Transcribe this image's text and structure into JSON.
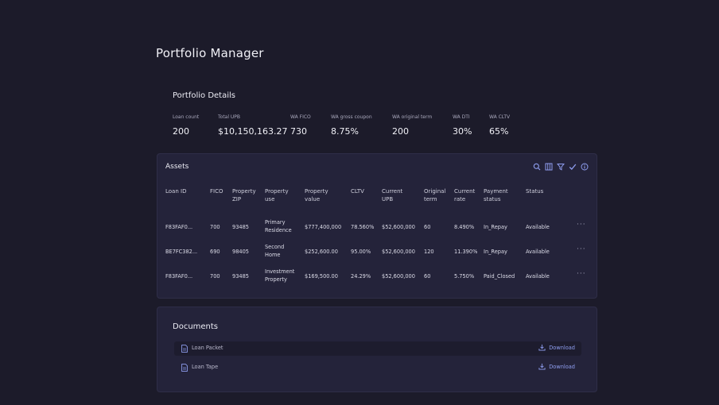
{
  "page": {
    "title": "Portfolio Manager"
  },
  "details": {
    "title": "Portfolio Details",
    "metrics": [
      {
        "label": "Loan count",
        "value": "200"
      },
      {
        "label": "Total UPB",
        "value": "$10,150,163.27"
      },
      {
        "label": "WA FICO",
        "value": "730"
      },
      {
        "label": "WA gross coupon",
        "value": "8.75%"
      },
      {
        "label": "WA original term",
        "value": "200"
      },
      {
        "label": "WA DTI",
        "value": "30%"
      },
      {
        "label": "WA CLTV",
        "value": "65%"
      }
    ]
  },
  "assets": {
    "title": "Assets",
    "toolbar_icons": [
      "search-icon",
      "columns-icon",
      "filter-icon",
      "check-icon",
      "info-icon"
    ],
    "columns": {
      "loan_id": [
        "Loan ID"
      ],
      "fico": [
        "FICO"
      ],
      "zip": [
        "Property",
        "ZIP"
      ],
      "use": [
        "Property",
        "use"
      ],
      "value": [
        "Property",
        "value"
      ],
      "cltv": [
        "CLTV"
      ],
      "upb": [
        "Current",
        "UPB"
      ],
      "term": [
        "Original",
        "term"
      ],
      "rate": [
        "Current",
        "rate"
      ],
      "payment": [
        "Payment",
        "status"
      ],
      "status": [
        "Status"
      ]
    },
    "rows": [
      {
        "loan_id": "F83FAF0...",
        "fico": "700",
        "zip": "93485",
        "use": [
          "Primary",
          "Residence"
        ],
        "value": "$777,400,000",
        "cltv": "78.560%",
        "upb": "$52,600,000",
        "term": "60",
        "rate": "8.490%",
        "payment": "In_Repay",
        "status": "Available",
        "more": "···"
      },
      {
        "loan_id": "BE7FC382...",
        "fico": "690",
        "zip": "98405",
        "use": [
          "Second",
          "Home"
        ],
        "value": "$252,600.00",
        "cltv": "95.00%",
        "upb": "$52,600,000",
        "term": "120",
        "rate": "11.390%",
        "payment": "In_Repay",
        "status": "Available",
        "more": "···"
      },
      {
        "loan_id": "F83FAF0...",
        "fico": "700",
        "zip": "93485",
        "use": [
          "Investment",
          "Property"
        ],
        "value": "$169,500.00",
        "cltv": "24.29%",
        "upb": "$52,600,000",
        "term": "60",
        "rate": "5.750%",
        "payment": "Paid_Closed",
        "status": "Available",
        "more": "···"
      }
    ]
  },
  "documents": {
    "title": "Documents",
    "items": [
      {
        "name": "Loan Packet",
        "action": "Download"
      },
      {
        "name": "Loan Tape",
        "action": "Download"
      }
    ]
  }
}
